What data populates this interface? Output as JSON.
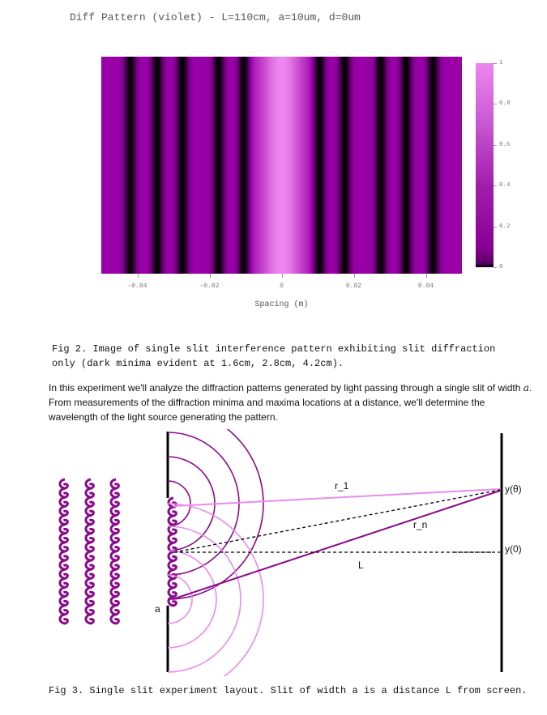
{
  "chart_data": {
    "type": "heatmap",
    "title": "Diff Pattern (violet) - L=110cm, a=10um, d=0um",
    "xlabel": "Spacing (m)",
    "ylabel": "",
    "x_ticks": [
      "-0.04",
      "-0.02",
      "0",
      "0.02",
      "0.04"
    ],
    "x_tick_values": [
      -0.04,
      -0.02,
      0,
      0.02,
      0.04
    ],
    "xlim": [
      -0.05,
      0.05
    ],
    "colorbar_ticks": [
      "0",
      "0.2",
      "0.4",
      "0.6",
      "0.8",
      "1"
    ],
    "colorbar_range": [
      0,
      1
    ],
    "colors": {
      "low": "#000000",
      "mid": "#9900a8",
      "high": "#ee86ee"
    },
    "dark_minima_cm": [
      1.6,
      2.8,
      4.2
    ]
  },
  "fig2": {
    "caption_line1": "Fig 2. Image of single slit interference pattern exhibiting slit diffraction",
    "caption_line2": "only (dark minima evident at 1.6cm, 2.8cm, 4.2cm)."
  },
  "intro": {
    "part1": "In this experiment we'll analyze the diffraction patterns generated by light passing through a single slit of width ",
    "var": "a",
    "part2": ". From measurements of the diffraction minima and maxima locations at a distance, we'll determine the wavelength of the light source generating the pattern."
  },
  "diagram": {
    "label_r1": "r_1",
    "label_rn": "r_n",
    "label_L": "L",
    "label_a": "a",
    "label_ytheta": "y(θ)",
    "label_y0": "y(0)",
    "colors": {
      "dark": "#8a0a8c",
      "light": "#e98ce9",
      "black": "#000000"
    }
  },
  "fig3": {
    "caption": "Fig 3. Single slit experiment layout. Slit of width a is a distance L from screen."
  }
}
